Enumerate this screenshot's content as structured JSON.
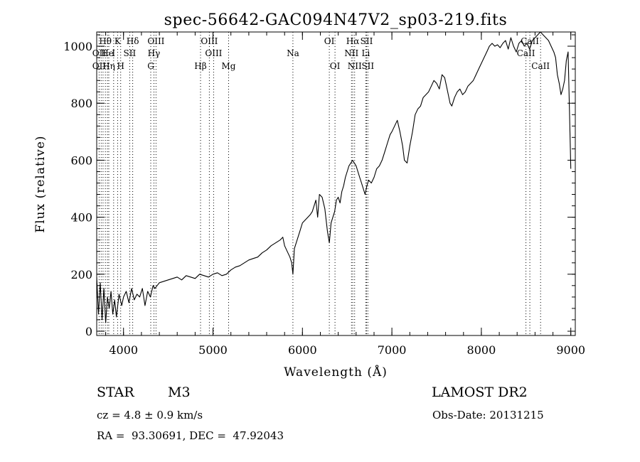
{
  "chart_data": {
    "type": "line",
    "title": "spec-56642-GAC094N47V2_sp03-219.fits",
    "xlabel": "Wavelength (Å)",
    "ylabel": "Flux (relative)",
    "xlim": [
      3700,
      9050
    ],
    "ylim": [
      -15,
      1050
    ],
    "xticks": [
      4000,
      5000,
      6000,
      7000,
      8000,
      9000
    ],
    "yticks": [
      0,
      200,
      400,
      600,
      800,
      1000
    ],
    "x_minor_step": 200,
    "y_minor_step": 40,
    "grid": false,
    "series": [
      {
        "x": [
          3700,
          3720,
          3740,
          3760,
          3780,
          3800,
          3820,
          3840,
          3860,
          3880,
          3900,
          3920,
          3950,
          3980,
          4000,
          4030,
          4060,
          4090,
          4120,
          4150,
          4180,
          4210,
          4240,
          4270,
          4300,
          4330,
          4350,
          4400,
          4450,
          4500,
          4550,
          4600,
          4650,
          4700,
          4750,
          4800,
          4850,
          4900,
          4950,
          5000,
          5050,
          5100,
          5150,
          5200,
          5250,
          5300,
          5350,
          5400,
          5450,
          5500,
          5550,
          5600,
          5650,
          5700,
          5750,
          5780,
          5800,
          5830,
          5860,
          5880,
          5893,
          5910,
          5940,
          5970,
          6000,
          6030,
          6060,
          6090,
          6110,
          6130,
          6150,
          6170,
          6190,
          6220,
          6250,
          6280,
          6300,
          6320,
          6340,
          6360,
          6380,
          6400,
          6420,
          6440,
          6460,
          6480,
          6500,
          6520,
          6540,
          6560,
          6580,
          6600,
          6620,
          6640,
          6660,
          6680,
          6700,
          6720,
          6740,
          6770,
          6800,
          6830,
          6860,
          6890,
          6920,
          6950,
          6980,
          7000,
          7030,
          7060,
          7090,
          7120,
          7140,
          7170,
          7200,
          7230,
          7260,
          7290,
          7320,
          7350,
          7380,
          7410,
          7440,
          7470,
          7500,
          7530,
          7560,
          7590,
          7610,
          7630,
          7650,
          7670,
          7700,
          7730,
          7760,
          7790,
          7820,
          7850,
          7880,
          7910,
          7940,
          7970,
          8000,
          8030,
          8060,
          8090,
          8120,
          8150,
          8180,
          8210,
          8240,
          8270,
          8300,
          8330,
          8360,
          8390,
          8420,
          8450,
          8480,
          8510,
          8540,
          8570,
          8600,
          8630,
          8660,
          8690,
          8720,
          8750,
          8780,
          8810,
          8830,
          8850,
          8870,
          8890,
          8910,
          8930,
          8950,
          8970,
          8990,
          9000
        ],
        "y": [
          190,
          60,
          170,
          40,
          150,
          30,
          120,
          80,
          140,
          60,
          110,
          50,
          130,
          90,
          120,
          140,
          100,
          150,
          110,
          130,
          120,
          150,
          90,
          140,
          120,
          160,
          150,
          170,
          175,
          180,
          185,
          190,
          180,
          195,
          190,
          185,
          200,
          195,
          190,
          200,
          205,
          195,
          200,
          215,
          225,
          230,
          240,
          250,
          255,
          260,
          275,
          285,
          300,
          310,
          320,
          330,
          300,
          280,
          260,
          240,
          200,
          290,
          320,
          350,
          380,
          390,
          400,
          410,
          420,
          440,
          460,
          400,
          480,
          470,
          430,
          350,
          310,
          380,
          400,
          420,
          460,
          470,
          450,
          490,
          510,
          540,
          560,
          580,
          590,
          600,
          590,
          580,
          560,
          540,
          520,
          500,
          480,
          510,
          530,
          520,
          540,
          570,
          580,
          600,
          630,
          660,
          690,
          700,
          720,
          740,
          700,
          650,
          600,
          590,
          650,
          700,
          760,
          780,
          790,
          820,
          830,
          840,
          860,
          880,
          870,
          850,
          900,
          890,
          860,
          830,
          800,
          790,
          820,
          840,
          850,
          830,
          840,
          860,
          870,
          880,
          900,
          920,
          940,
          960,
          980,
          1000,
          1010,
          1000,
          1005,
          995,
          1010,
          1020,
          990,
          1030,
          1000,
          980,
          1010,
          1020,
          1000,
          1010,
          990,
          1020,
          1030,
          1040,
          1050,
          1040,
          1030,
          1020,
          1000,
          980,
          960,
          900,
          870,
          830,
          850,
          880,
          950,
          980,
          700,
          570
        ]
      }
    ],
    "line_annotations": [
      {
        "label": "Hθ",
        "x": 3797,
        "row": 1
      },
      {
        "label": "K",
        "x": 3934,
        "row": 1
      },
      {
        "label": "Hδ",
        "x": 4102,
        "row": 1
      },
      {
        "label": "OIII",
        "x": 4363,
        "row": 1
      },
      {
        "label": "OIII",
        "x": 4959,
        "row": 1
      },
      {
        "label": "OI",
        "x": 6300,
        "row": 1
      },
      {
        "label": "Hα",
        "x": 6563,
        "row": 1
      },
      {
        "label": "SII",
        "x": 6717,
        "row": 1
      },
      {
        "label": "CaII",
        "x": 8542,
        "row": 1
      },
      {
        "label": "OII",
        "x": 3727,
        "row": 2
      },
      {
        "label": "He",
        "x": 3820,
        "row": 2
      },
      {
        "label": "I",
        "x": 3889,
        "row": 2
      },
      {
        "label": "SII",
        "x": 4069,
        "row": 2
      },
      {
        "label": "Hγ",
        "x": 4340,
        "row": 2
      },
      {
        "label": "OIII",
        "x": 5007,
        "row": 2
      },
      {
        "label": "Na",
        "x": 5893,
        "row": 2
      },
      {
        "label": "NII",
        "x": 6548,
        "row": 2
      },
      {
        "label": "Li",
        "x": 6708,
        "row": 2
      },
      {
        "label": "CaII",
        "x": 8498,
        "row": 2
      },
      {
        "label": "OII",
        "x": 3727,
        "row": 3
      },
      {
        "label": "Hη",
        "x": 3835,
        "row": 3
      },
      {
        "label": "H",
        "x": 3968,
        "row": 3
      },
      {
        "label": "G",
        "x": 4304,
        "row": 3
      },
      {
        "label": "Hβ",
        "x": 4861,
        "row": 3
      },
      {
        "label": "Mg",
        "x": 5175,
        "row": 3
      },
      {
        "label": "OI",
        "x": 6364,
        "row": 3
      },
      {
        "label": "NII",
        "x": 6583,
        "row": 3
      },
      {
        "label": "SII",
        "x": 6731,
        "row": 3
      },
      {
        "label": "CaII",
        "x": 8662,
        "row": 3
      }
    ],
    "line_marker_x": [
      3727,
      3750,
      3771,
      3797,
      3820,
      3835,
      3889,
      3934,
      3968,
      4069,
      4102,
      4304,
      4340,
      4363,
      4861,
      4959,
      5007,
      5175,
      5893,
      6300,
      6364,
      6548,
      6563,
      6583,
      6708,
      6717,
      6731,
      8498,
      8542,
      8662
    ]
  },
  "info": {
    "object_type": "STAR",
    "subclass": "M3",
    "survey": "LAMOST DR2",
    "cz": "cz = 4.8 ± 0.9 km/s",
    "obs_date": "Obs-Date: 20131215",
    "coords": "RA =  93.30691, DEC =  47.92043"
  }
}
